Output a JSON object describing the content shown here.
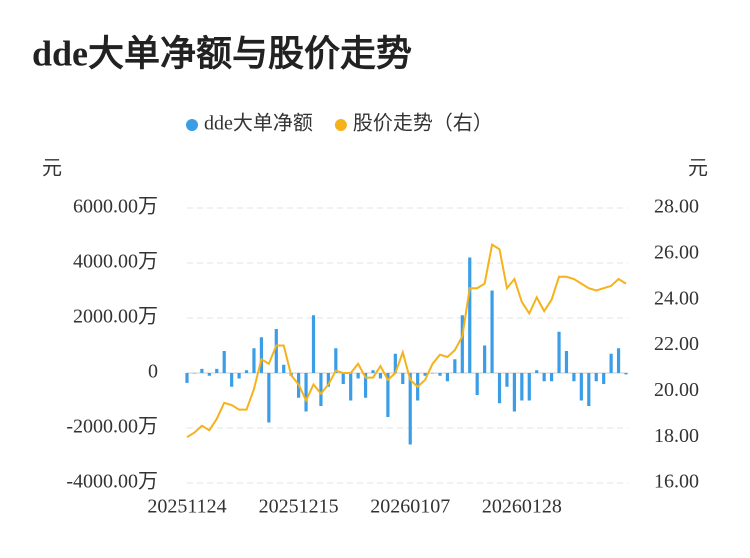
{
  "chart_data": {
    "type": "bar_line",
    "title": "dde大单净额与股价走势",
    "y_unit": "元",
    "y2_unit": "元",
    "categories": [
      "20251124",
      null,
      null,
      null,
      null,
      null,
      null,
      null,
      null,
      null,
      null,
      null,
      null,
      null,
      null,
      "20251215",
      null,
      null,
      null,
      null,
      null,
      null,
      null,
      null,
      null,
      null,
      null,
      null,
      null,
      null,
      "20260107",
      null,
      null,
      null,
      null,
      null,
      null,
      null,
      null,
      null,
      null,
      null,
      null,
      null,
      null,
      "20260128",
      null,
      null,
      null,
      null,
      null,
      null,
      null,
      null,
      null,
      null,
      null,
      null,
      null,
      null
    ],
    "series": [
      {
        "name": "dde大单净额",
        "type": "bar",
        "color": "#3a9de6",
        "values": [
          -360,
          0,
          150,
          -100,
          150,
          800,
          -500,
          -200,
          100,
          900,
          1300,
          -1800,
          1600,
          300,
          -100,
          -900,
          -1400,
          2100,
          -1200,
          -500,
          900,
          -400,
          -1000,
          -200,
          -900,
          100,
          -200,
          -1600,
          700,
          -400,
          -2600,
          -1000,
          -100,
          0,
          -100,
          -300,
          500,
          2100,
          4200,
          -800,
          1000,
          3000,
          -1100,
          -500,
          -1400,
          -1000,
          -1000,
          100,
          -300,
          -300,
          1500,
          800,
          -300,
          -1000,
          -1200,
          -300,
          -400,
          700,
          900,
          -50
        ]
      },
      {
        "name": "股价走势（右）",
        "type": "line",
        "axis": "y2",
        "color": "#f5b21b",
        "values": [
          18.0,
          18.2,
          18.5,
          18.3,
          18.8,
          19.5,
          19.4,
          19.2,
          19.2,
          20.1,
          21.4,
          21.2,
          22.0,
          22.0,
          20.7,
          20.3,
          19.6,
          20.3,
          19.9,
          20.3,
          20.9,
          20.8,
          20.8,
          21.2,
          20.6,
          20.6,
          21.1,
          20.5,
          20.8,
          21.7,
          20.5,
          20.2,
          20.5,
          21.2,
          21.6,
          21.5,
          21.8,
          22.4,
          24.5,
          24.5,
          24.7,
          26.4,
          26.2,
          24.5,
          24.9,
          23.9,
          23.4,
          24.1,
          23.5,
          24.0,
          25.0,
          25.0,
          24.9,
          24.7,
          24.5,
          24.4,
          24.5,
          24.6,
          24.9,
          24.7
        ]
      }
    ],
    "ylim": [
      -4000,
      6000
    ],
    "yticks": [
      {
        "value": -4000,
        "label": "-4000.00万"
      },
      {
        "value": -2000,
        "label": "-2000.00万"
      },
      0,
      {
        "value": 2000,
        "label": "2000.00万"
      },
      {
        "value": 4000,
        "label": "4000.00万"
      },
      {
        "value": 6000,
        "label": "6000.00万"
      }
    ],
    "y2lim": [
      16,
      28
    ],
    "y2ticks": [
      {
        "value": 16,
        "label": "16.00"
      },
      {
        "value": 18,
        "label": "18.00"
      },
      {
        "value": 20,
        "label": "20.00"
      },
      {
        "value": 22,
        "label": "22.00"
      },
      {
        "value": 24,
        "label": "24.00"
      },
      {
        "value": 26,
        "label": "26.00"
      },
      {
        "value": 28,
        "label": "28.00"
      }
    ],
    "grid": true,
    "legend": "top"
  }
}
